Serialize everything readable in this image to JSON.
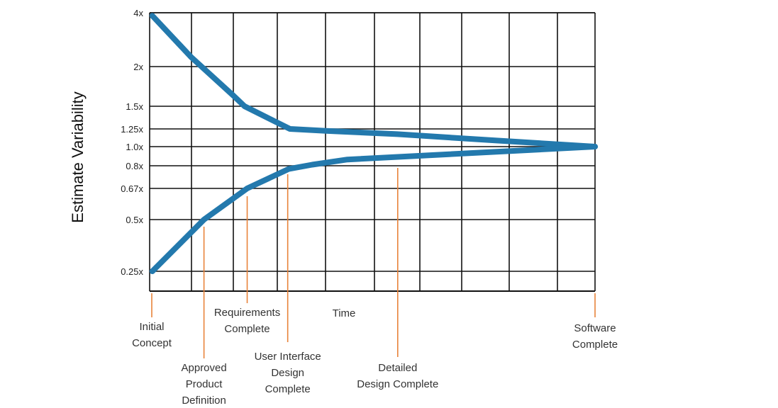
{
  "chart_data": {
    "type": "line",
    "title": "",
    "xlabel": "Time",
    "ylabel": "Estimate Variability",
    "yscale": "log",
    "yticks": [
      {
        "label": "4x",
        "value": 4
      },
      {
        "label": "2x",
        "value": 2
      },
      {
        "label": "1.5x",
        "value": 1.5
      },
      {
        "label": "1.25x",
        "value": 1.25
      },
      {
        "label": "1.0x",
        "value": 1.0
      },
      {
        "label": "0.8x",
        "value": 0.8
      },
      {
        "label": "0.67x",
        "value": 0.67
      },
      {
        "label": "0.5x",
        "value": 0.5
      },
      {
        "label": "0.25x",
        "value": 0.25
      }
    ],
    "xlim": [
      0,
      1
    ],
    "grid": true,
    "milestones": [
      {
        "label": "Initial Concept",
        "lines": [
          "Initial",
          "Concept"
        ],
        "x": 0.0
      },
      {
        "label": "Approved Product Definition",
        "lines": [
          "Approved",
          "Product",
          "Definition"
        ],
        "x": 0.122
      },
      {
        "label": "Requirements Complete",
        "lines": [
          "Requirements",
          "Complete"
        ],
        "x": 0.219
      },
      {
        "label": "User Interface Design Complete",
        "lines": [
          "User Interface",
          "Design",
          "Complete"
        ],
        "x": 0.31
      },
      {
        "label": "Detailed Design Complete",
        "lines": [
          "Detailed",
          "Design Complete"
        ],
        "x": 0.557
      },
      {
        "label": "Software Complete",
        "lines": [
          "Software",
          "Complete"
        ],
        "x": 1.0
      }
    ],
    "series": [
      {
        "name": "upper bound",
        "color": "#1f77b4",
        "points": [
          [
            0.006,
            3.85
          ],
          [
            0.094,
            2.25
          ],
          [
            0.188,
            1.62
          ],
          [
            0.213,
            1.5
          ],
          [
            0.315,
            1.25
          ],
          [
            0.396,
            1.22
          ],
          [
            0.556,
            1.17
          ],
          [
            0.779,
            1.08
          ],
          [
            1.0,
            1.0
          ]
        ]
      },
      {
        "name": "lower bound",
        "color": "#1f77b4",
        "points": [
          [
            0.006,
            0.25
          ],
          [
            0.122,
            0.5
          ],
          [
            0.219,
            0.67
          ],
          [
            0.312,
            0.78
          ],
          [
            0.365,
            0.81
          ],
          [
            0.444,
            0.86
          ],
          [
            1.0,
            1.0
          ]
        ]
      }
    ],
    "colors": {
      "curve": "#2379ad",
      "milestone": "#e8833a",
      "grid": "#111111"
    }
  }
}
